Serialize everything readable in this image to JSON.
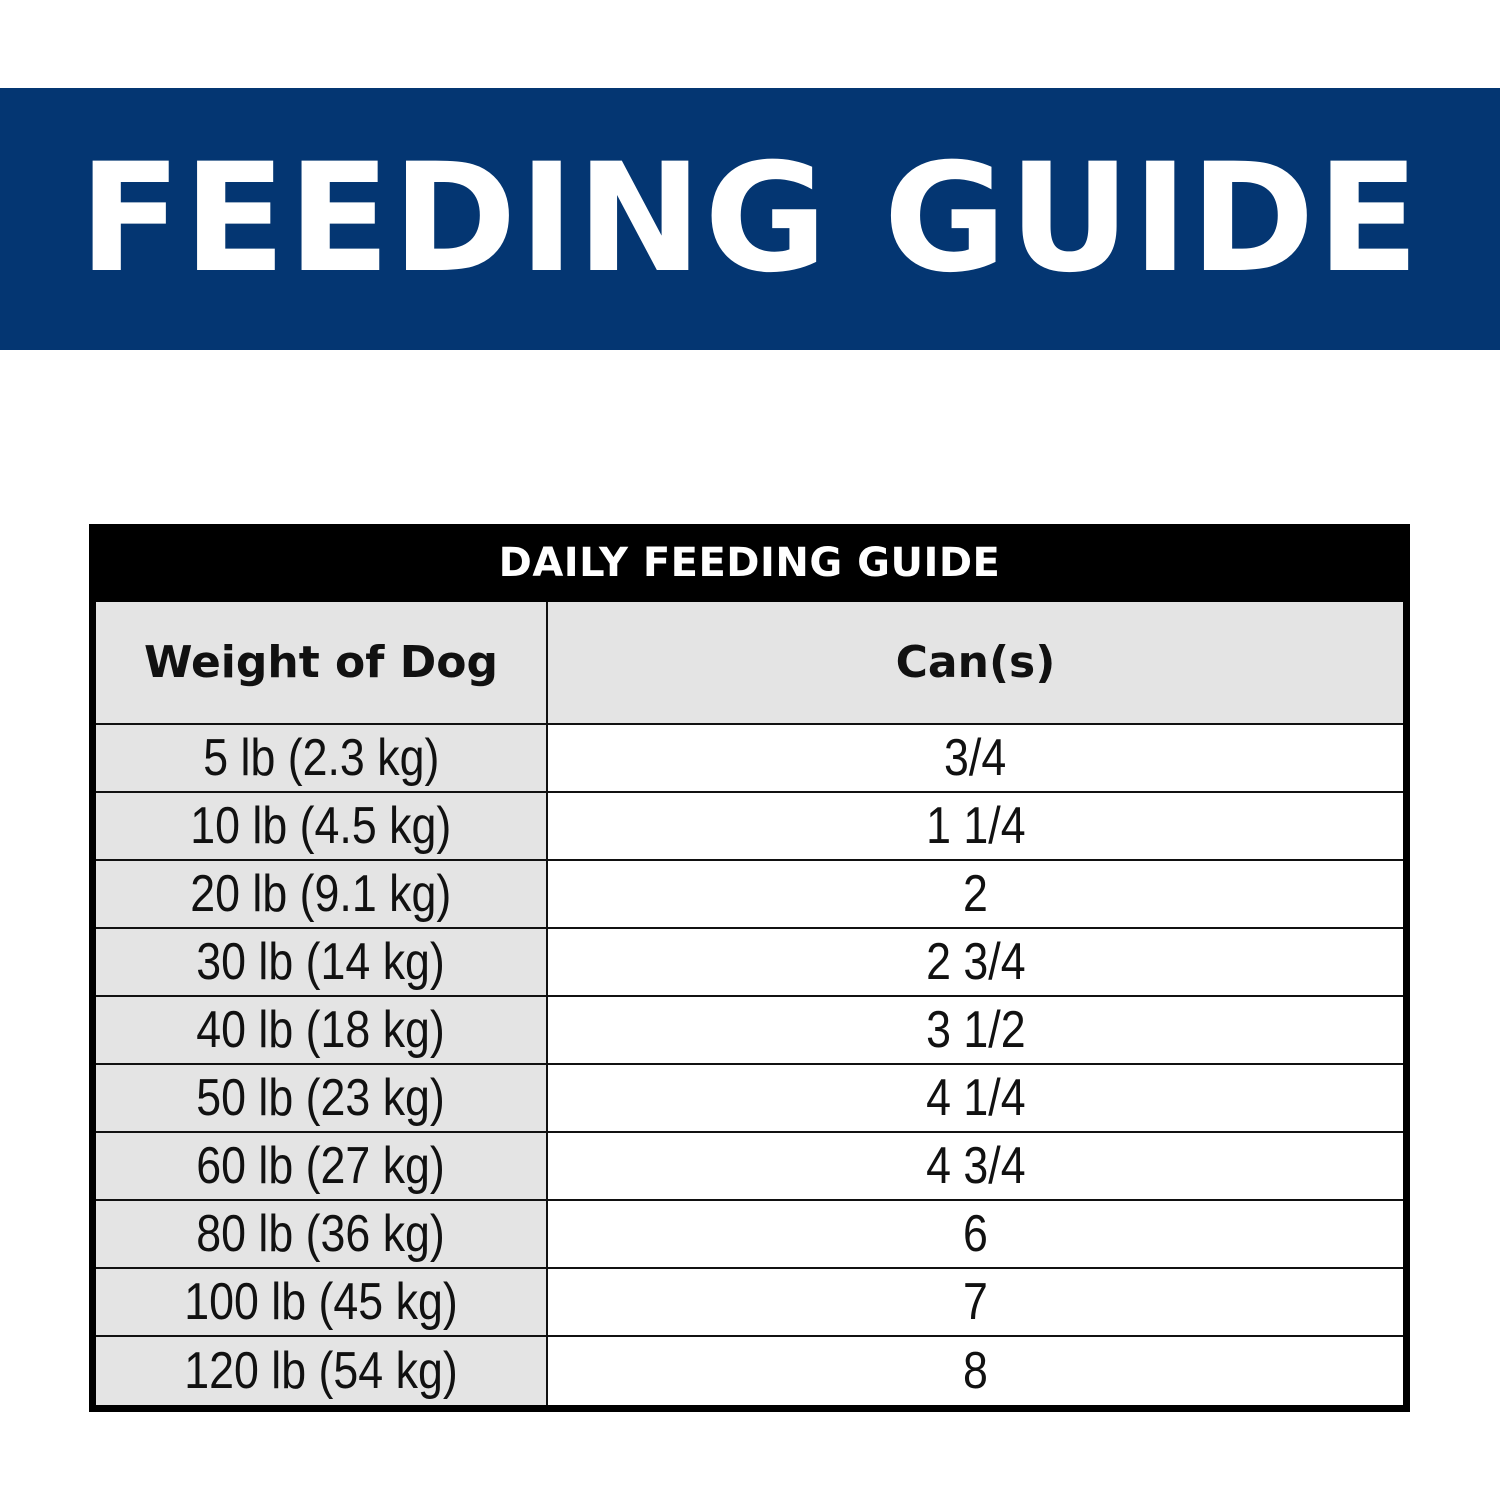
{
  "banner": {
    "title": "FEEDING GUIDE",
    "background_color": "#043672"
  },
  "table": {
    "caption": "DAILY FEEDING GUIDE",
    "headers": [
      "Weight of Dog",
      "Can(s)"
    ],
    "rows": [
      {
        "weight": "5 lb (2.3 kg)",
        "cans": "3/4"
      },
      {
        "weight": "10 lb (4.5 kg)",
        "cans": "1 1/4"
      },
      {
        "weight": "20 lb (9.1 kg)",
        "cans": "2"
      },
      {
        "weight": "30 lb (14 kg)",
        "cans": "2 3/4"
      },
      {
        "weight": "40 lb (18 kg)",
        "cans": "3 1/2"
      },
      {
        "weight": "50 lb (23 kg)",
        "cans": "4 1/4"
      },
      {
        "weight": "60 lb (27 kg)",
        "cans": "4 3/4"
      },
      {
        "weight": "80 lb (36 kg)",
        "cans": "6"
      },
      {
        "weight": "100 lb (45 kg)",
        "cans": "7"
      },
      {
        "weight": "120 lb (54 kg)",
        "cans": "8"
      }
    ]
  }
}
